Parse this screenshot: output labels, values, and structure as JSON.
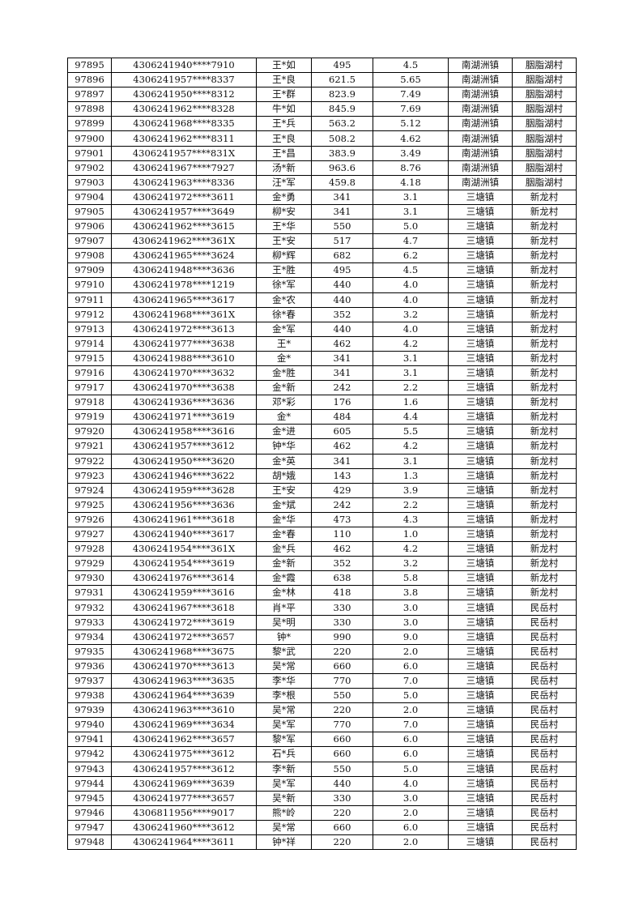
{
  "table": {
    "rows": [
      [
        "97895",
        "4306241940****7910",
        "王*如",
        "495",
        "4.5",
        "南湖洲镇",
        "胭脂湖村"
      ],
      [
        "97896",
        "4306241957****8337",
        "王*良",
        "621.5",
        "5.65",
        "南湖洲镇",
        "胭脂湖村"
      ],
      [
        "97897",
        "4306241950****8312",
        "王*群",
        "823.9",
        "7.49",
        "南湖洲镇",
        "胭脂湖村"
      ],
      [
        "97898",
        "4306241962****8328",
        "牛*如",
        "845.9",
        "7.69",
        "南湖洲镇",
        "胭脂湖村"
      ],
      [
        "97899",
        "4306241968****8335",
        "王*兵",
        "563.2",
        "5.12",
        "南湖洲镇",
        "胭脂湖村"
      ],
      [
        "97900",
        "4306241962****8311",
        "王*良",
        "508.2",
        "4.62",
        "南湖洲镇",
        "胭脂湖村"
      ],
      [
        "97901",
        "4306241957****831X",
        "王*昌",
        "383.9",
        "3.49",
        "南湖洲镇",
        "胭脂湖村"
      ],
      [
        "97902",
        "4306241967****7927",
        "汤*新",
        "963.6",
        "8.76",
        "南湖洲镇",
        "胭脂湖村"
      ],
      [
        "97903",
        "4306241963****8336",
        "汪*军",
        "459.8",
        "4.18",
        "南湖洲镇",
        "胭脂湖村"
      ],
      [
        "97904",
        "4306241972****3611",
        "金*勇",
        "341",
        "3.1",
        "三塘镇",
        "新龙村"
      ],
      [
        "97905",
        "4306241957****3649",
        "柳*安",
        "341",
        "3.1",
        "三塘镇",
        "新龙村"
      ],
      [
        "97906",
        "4306241962****3615",
        "王*华",
        "550",
        "5.0",
        "三塘镇",
        "新龙村"
      ],
      [
        "97907",
        "4306241962****361X",
        "王*安",
        "517",
        "4.7",
        "三塘镇",
        "新龙村"
      ],
      [
        "97908",
        "4306241965****3624",
        "柳*辉",
        "682",
        "6.2",
        "三塘镇",
        "新龙村"
      ],
      [
        "97909",
        "4306241948****3636",
        "王*胜",
        "495",
        "4.5",
        "三塘镇",
        "新龙村"
      ],
      [
        "97910",
        "4306241978****1219",
        "徐*军",
        "440",
        "4.0",
        "三塘镇",
        "新龙村"
      ],
      [
        "97911",
        "4306241965****3617",
        "金*农",
        "440",
        "4.0",
        "三塘镇",
        "新龙村"
      ],
      [
        "97912",
        "4306241968****361X",
        "徐*春",
        "352",
        "3.2",
        "三塘镇",
        "新龙村"
      ],
      [
        "97913",
        "4306241972****3613",
        "金*军",
        "440",
        "4.0",
        "三塘镇",
        "新龙村"
      ],
      [
        "97914",
        "4306241977****3638",
        "王*",
        "462",
        "4.2",
        "三塘镇",
        "新龙村"
      ],
      [
        "97915",
        "4306241988****3610",
        "金*",
        "341",
        "3.1",
        "三塘镇",
        "新龙村"
      ],
      [
        "97916",
        "4306241970****3632",
        "金*胜",
        "341",
        "3.1",
        "三塘镇",
        "新龙村"
      ],
      [
        "97917",
        "4306241970****3638",
        "金*新",
        "242",
        "2.2",
        "三塘镇",
        "新龙村"
      ],
      [
        "97918",
        "4306241936****3636",
        "邓*彩",
        "176",
        "1.6",
        "三塘镇",
        "新龙村"
      ],
      [
        "97919",
        "4306241971****3619",
        "金*",
        "484",
        "4.4",
        "三塘镇",
        "新龙村"
      ],
      [
        "97920",
        "4306241958****3616",
        "金*进",
        "605",
        "5.5",
        "三塘镇",
        "新龙村"
      ],
      [
        "97921",
        "4306241957****3612",
        "钟*华",
        "462",
        "4.2",
        "三塘镇",
        "新龙村"
      ],
      [
        "97922",
        "4306241950****3620",
        "金*英",
        "341",
        "3.1",
        "三塘镇",
        "新龙村"
      ],
      [
        "97923",
        "4306241946****3622",
        "胡*娥",
        "143",
        "1.3",
        "三塘镇",
        "新龙村"
      ],
      [
        "97924",
        "4306241959****3628",
        "王*安",
        "429",
        "3.9",
        "三塘镇",
        "新龙村"
      ],
      [
        "97925",
        "4306241956****3636",
        "金*斌",
        "242",
        "2.2",
        "三塘镇",
        "新龙村"
      ],
      [
        "97926",
        "4306241961****3618",
        "金*华",
        "473",
        "4.3",
        "三塘镇",
        "新龙村"
      ],
      [
        "97927",
        "4306241940****3617",
        "金*春",
        "110",
        "1.0",
        "三塘镇",
        "新龙村"
      ],
      [
        "97928",
        "4306241954****361X",
        "金*兵",
        "462",
        "4.2",
        "三塘镇",
        "新龙村"
      ],
      [
        "97929",
        "4306241954****3619",
        "金*新",
        "352",
        "3.2",
        "三塘镇",
        "新龙村"
      ],
      [
        "97930",
        "4306241976****3614",
        "金*霞",
        "638",
        "5.8",
        "三塘镇",
        "新龙村"
      ],
      [
        "97931",
        "4306241959****3616",
        "金*林",
        "418",
        "3.8",
        "三塘镇",
        "新龙村"
      ],
      [
        "97932",
        "4306241967****3618",
        "肖*平",
        "330",
        "3.0",
        "三塘镇",
        "民岳村"
      ],
      [
        "97933",
        "4306241972****3619",
        "吴*明",
        "330",
        "3.0",
        "三塘镇",
        "民岳村"
      ],
      [
        "97934",
        "4306241972****3657",
        "钟*",
        "990",
        "9.0",
        "三塘镇",
        "民岳村"
      ],
      [
        "97935",
        "4306241968****3675",
        "黎*武",
        "220",
        "2.0",
        "三塘镇",
        "民岳村"
      ],
      [
        "97936",
        "4306241970****3613",
        "吴*常",
        "660",
        "6.0",
        "三塘镇",
        "民岳村"
      ],
      [
        "97937",
        "4306241963****3635",
        "李*华",
        "770",
        "7.0",
        "三塘镇",
        "民岳村"
      ],
      [
        "97938",
        "4306241964****3639",
        "李*根",
        "550",
        "5.0",
        "三塘镇",
        "民岳村"
      ],
      [
        "97939",
        "4306241963****3610",
        "吴*常",
        "220",
        "2.0",
        "三塘镇",
        "民岳村"
      ],
      [
        "97940",
        "4306241969****3634",
        "吴*军",
        "770",
        "7.0",
        "三塘镇",
        "民岳村"
      ],
      [
        "97941",
        "4306241962****3657",
        "黎*军",
        "660",
        "6.0",
        "三塘镇",
        "民岳村"
      ],
      [
        "97942",
        "4306241975****3612",
        "石*兵",
        "660",
        "6.0",
        "三塘镇",
        "民岳村"
      ],
      [
        "97943",
        "4306241957****3612",
        "李*新",
        "550",
        "5.0",
        "三塘镇",
        "民岳村"
      ],
      [
        "97944",
        "4306241969****3639",
        "吴*军",
        "440",
        "4.0",
        "三塘镇",
        "民岳村"
      ],
      [
        "97945",
        "4306241977****3657",
        "吴*新",
        "330",
        "3.0",
        "三塘镇",
        "民岳村"
      ],
      [
        "97946",
        "4306811956****9017",
        "熊*岭",
        "220",
        "2.0",
        "三塘镇",
        "民岳村"
      ],
      [
        "97947",
        "4306241960****3612",
        "吴*常",
        "660",
        "6.0",
        "三塘镇",
        "民岳村"
      ],
      [
        "97948",
        "4306241964****3611",
        "钟*祥",
        "220",
        "2.0",
        "三塘镇",
        "民岳村"
      ]
    ]
  }
}
